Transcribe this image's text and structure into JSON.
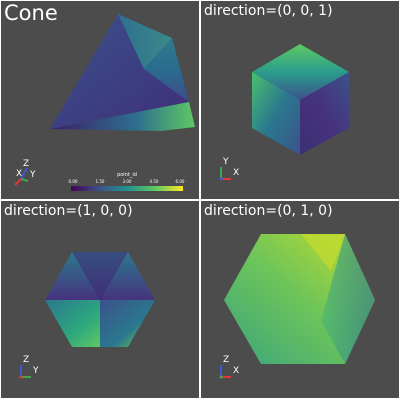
{
  "viewports": [
    {
      "title": "Cone",
      "axes": {
        "x": "X",
        "y": "Y",
        "z": "Z"
      }
    },
    {
      "title": "direction=(0, 0, 1)",
      "axes": {
        "x": "X",
        "y": "Y",
        "z": ""
      }
    },
    {
      "title": "direction=(1, 0, 0)",
      "axes": {
        "x": "",
        "y": "Y",
        "z": "Z"
      }
    },
    {
      "title": "direction=(0, 1, 0)",
      "axes": {
        "x": "X",
        "y": "",
        "z": "Z"
      }
    }
  ],
  "scalar_bar": {
    "title": "point_id",
    "ticks": [
      "0.00",
      "1.50",
      "3.00",
      "4.50",
      "6.00"
    ],
    "colormap": [
      "#440154",
      "#3b528b",
      "#21918c",
      "#5ec962",
      "#fde725"
    ]
  },
  "colors": {
    "background": "#4c4c4c",
    "axis_x": "#e0383b",
    "axis_y": "#3fa84b",
    "axis_z": "#3c57d8"
  }
}
